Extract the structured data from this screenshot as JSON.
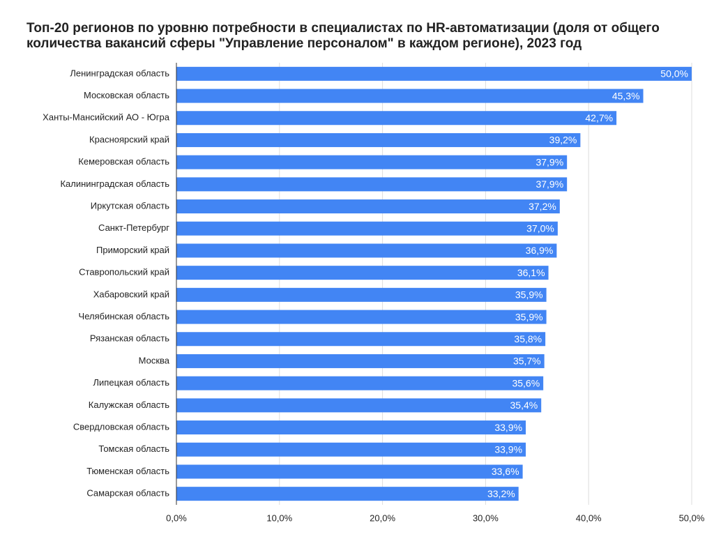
{
  "chart_data": {
    "type": "bar",
    "orientation": "horizontal",
    "title": "Топ-20 регионов по уровню потребности в специалистах по HR-автоматизации (доля от общего количества вакансий сферы \"Управление персоналом\" в каждом регионе), 2023 год",
    "categories": [
      "Ленинградская область",
      "Московская область",
      "Ханты-Мансийский АО - Югра",
      "Красноярский край",
      "Кемеровская область",
      "Калининградская область",
      "Иркутская область",
      "Санкт-Петербург",
      "Приморский край",
      "Ставропольский край",
      "Хабаровский край",
      "Челябинская область",
      "Рязанская область",
      "Москва",
      "Липецкая область",
      "Калужская область",
      "Свердловская область",
      "Томская область",
      "Тюменская область",
      "Самарская область"
    ],
    "values": [
      50.0,
      45.3,
      42.7,
      39.2,
      37.9,
      37.9,
      37.2,
      37.0,
      36.9,
      36.1,
      35.9,
      35.9,
      35.8,
      35.7,
      35.6,
      35.4,
      33.9,
      33.9,
      33.6,
      33.2
    ],
    "value_labels": [
      "50,0%",
      "45,3%",
      "42,7%",
      "39,2%",
      "37,9%",
      "37,9%",
      "37,2%",
      "37,0%",
      "36,9%",
      "36,1%",
      "35,9%",
      "35,9%",
      "35,8%",
      "35,7%",
      "35,6%",
      "35,4%",
      "33,9%",
      "33,9%",
      "33,6%",
      "33,2%"
    ],
    "color": "#4285f4",
    "xlim": [
      0,
      50
    ],
    "xticks": [
      {
        "value": 0,
        "label": "0,0%"
      },
      {
        "value": 10,
        "label": "10,0%"
      },
      {
        "value": 20,
        "label": "20,0%"
      },
      {
        "value": 30,
        "label": "30,0%"
      },
      {
        "value": 40,
        "label": "40,0%"
      },
      {
        "value": 50,
        "label": "50,0%"
      }
    ],
    "grid": true
  }
}
